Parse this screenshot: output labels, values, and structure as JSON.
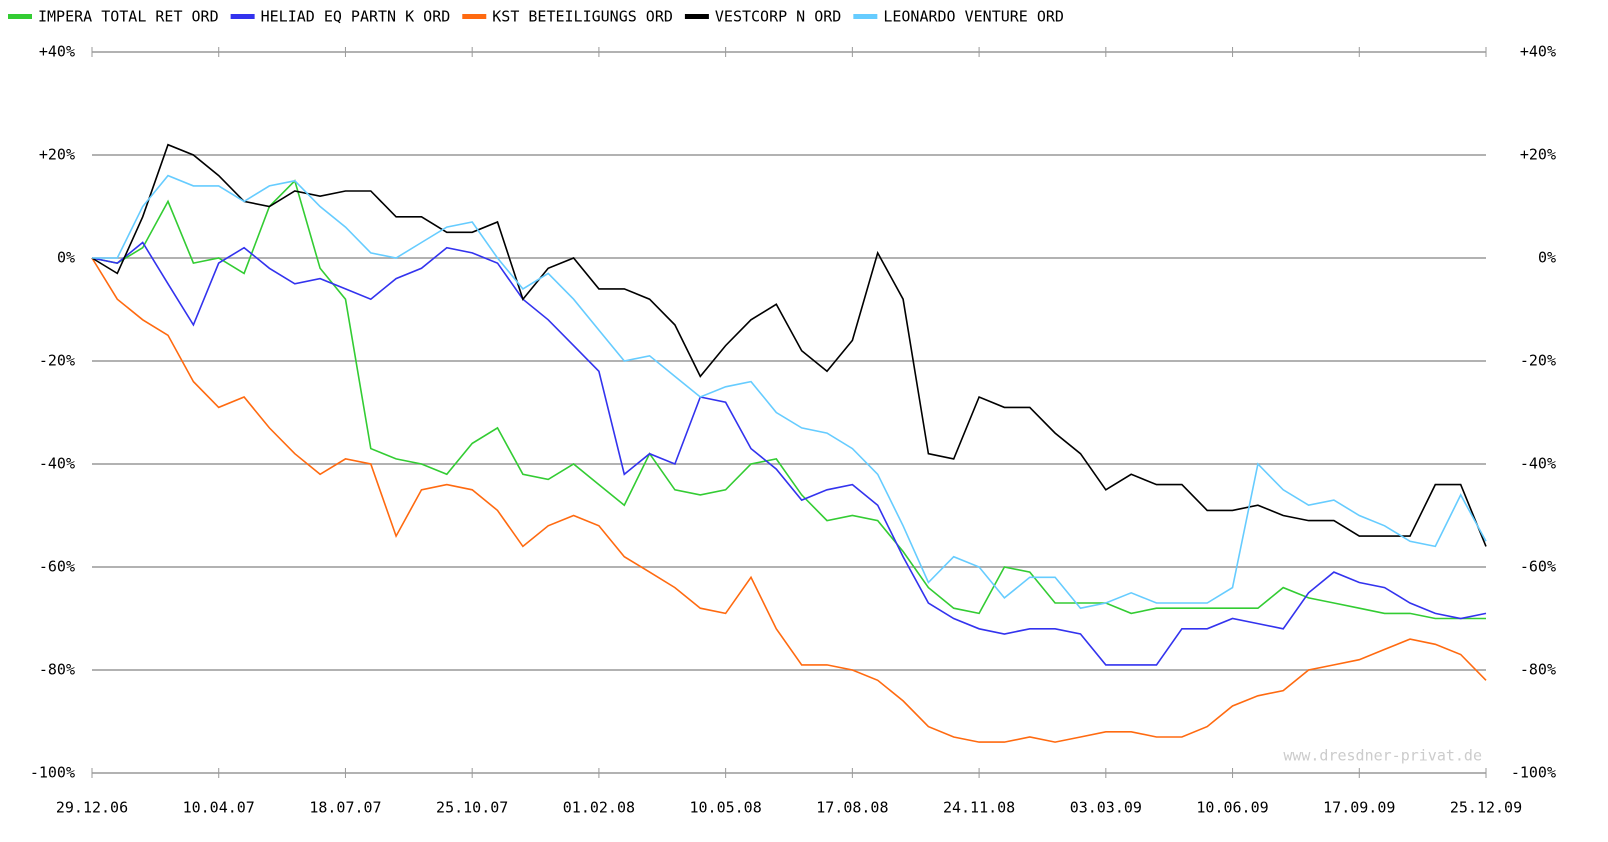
{
  "chart_data": {
    "type": "line",
    "categories": [
      "29.12.06",
      null,
      null,
      null,
      null,
      "10.04.07",
      null,
      null,
      null,
      null,
      "18.07.07",
      null,
      null,
      null,
      null,
      "25.10.07",
      null,
      null,
      null,
      null,
      "01.02.08",
      null,
      null,
      null,
      null,
      "10.05.08",
      null,
      null,
      null,
      null,
      "17.08.08",
      null,
      null,
      null,
      null,
      "24.11.08",
      null,
      null,
      null,
      null,
      "03.03.09",
      null,
      null,
      null,
      null,
      "10.06.09",
      null,
      null,
      null,
      null,
      "17.09.09",
      null,
      null,
      null,
      null,
      "25.12.09"
    ],
    "series": [
      {
        "name": "IMPERA TOTAL RET ORD",
        "color": "#33cc33",
        "values": [
          0,
          -1,
          2,
          11,
          -1,
          0,
          -3,
          10,
          15,
          -2,
          -8,
          -37,
          -39,
          -40,
          -42,
          -36,
          -33,
          -42,
          -43,
          -40,
          -44,
          -48,
          -38,
          -45,
          -46,
          -45,
          -40,
          -39,
          -46,
          -51,
          -50,
          -51,
          -57,
          -64,
          -68,
          -69,
          -60,
          -61,
          -67,
          -67,
          -67,
          -69,
          -68,
          -68,
          -68,
          -68,
          -68,
          -64,
          -66,
          -67,
          -68,
          -69,
          -69,
          -70,
          -70,
          -70
        ]
      },
      {
        "name": "HELIAD EQ PARTN K ORD",
        "color": "#3333ee",
        "values": [
          0,
          -1,
          3,
          -5,
          -13,
          -1,
          2,
          -2,
          -5,
          -4,
          -6,
          -8,
          -4,
          -2,
          2,
          1,
          -1,
          -8,
          -12,
          -17,
          -22,
          -42,
          -38,
          -40,
          -27,
          -28,
          -37,
          -41,
          -47,
          -45,
          -44,
          -48,
          -58,
          -67,
          -70,
          -72,
          -73,
          -72,
          -72,
          -73,
          -79,
          -79,
          -79,
          -72,
          -72,
          -70,
          -71,
          -72,
          -65,
          -61,
          -63,
          -64,
          -67,
          -69,
          -70,
          -69
        ]
      },
      {
        "name": "KST BETEILIGUNGS ORD",
        "color": "#ff6a10",
        "values": [
          0,
          -8,
          -12,
          -15,
          -24,
          -29,
          -27,
          -33,
          -38,
          -42,
          -39,
          -40,
          -54,
          -45,
          -44,
          -45,
          -49,
          -56,
          -52,
          -50,
          -52,
          -58,
          -61,
          -64,
          -68,
          -69,
          -62,
          -72,
          -79,
          -79,
          -80,
          -82,
          -86,
          -91,
          -93,
          -94,
          -94,
          -93,
          -94,
          -93,
          -92,
          -92,
          -93,
          -93,
          -91,
          -87,
          -85,
          -84,
          -80,
          -79,
          -78,
          -76,
          -74,
          -75,
          -77,
          -82
        ]
      },
      {
        "name": "VESTCORP N ORD",
        "color": "#000000",
        "values": [
          0,
          -3,
          8,
          22,
          20,
          16,
          11,
          10,
          13,
          12,
          13,
          13,
          8,
          8,
          5,
          5,
          7,
          -8,
          -2,
          0,
          -6,
          -6,
          -8,
          -13,
          -23,
          -17,
          -12,
          -9,
          -18,
          -22,
          -16,
          1,
          -8,
          -38,
          -39,
          -27,
          -29,
          -29,
          -34,
          -38,
          -45,
          -42,
          -44,
          -44,
          -49,
          -49,
          -48,
          -50,
          -51,
          -51,
          -54,
          -54,
          -54,
          -44,
          -44,
          -56
        ]
      },
      {
        "name": "LEONARDO VENTURE ORD",
        "color": "#66ccff",
        "values": [
          0,
          0,
          10,
          16,
          14,
          14,
          11,
          14,
          15,
          10,
          6,
          1,
          0,
          3,
          6,
          7,
          0,
          -6,
          -3,
          -8,
          -14,
          -20,
          -19,
          -23,
          -27,
          -25,
          -24,
          -30,
          -33,
          -34,
          -37,
          -42,
          -52,
          -63,
          -58,
          -60,
          -66,
          -62,
          -62,
          -68,
          -67,
          -65,
          -67,
          -67,
          -67,
          -64,
          -40,
          -45,
          -48,
          -47,
          -50,
          -52,
          -55,
          -56,
          -46,
          -55
        ]
      }
    ],
    "ylim": [
      -100,
      40
    ],
    "yticks": [
      {
        "value": -100,
        "label": "-100%"
      },
      {
        "value": -80,
        "label": "-80%"
      },
      {
        "value": -60,
        "label": "-60%"
      },
      {
        "value": -40,
        "label": "-40%"
      },
      {
        "value": -20,
        "label": "-20%"
      },
      {
        "value": 0,
        "label": "0%"
      },
      {
        "value": 20,
        "label": "+20%"
      },
      {
        "value": 40,
        "label": "+40%"
      }
    ],
    "grid": true,
    "watermark": "www.dresdner-privat.de"
  }
}
